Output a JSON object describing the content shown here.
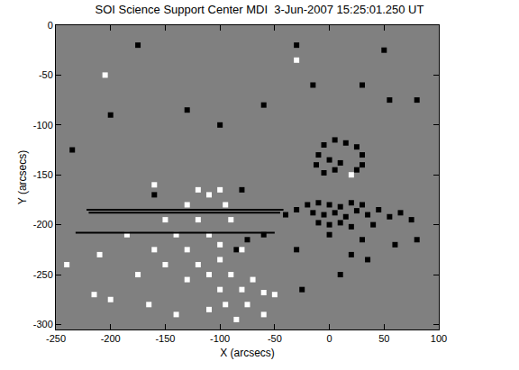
{
  "chart_data": {
    "type": "scatter",
    "title": "SOI Science Support Center MDI  3-Jun-2007 15:25:01.250 UT",
    "x_label": "X (arcsecs)",
    "y_label": "Y (arcsecs)",
    "xlim": [
      -250,
      100
    ],
    "ylim": [
      -305,
      0
    ],
    "xticks": [
      -250,
      -200,
      -150,
      -100,
      -50,
      0,
      50,
      100
    ],
    "yticks": [
      -300,
      -250,
      -200,
      -150,
      -100,
      -50,
      0
    ],
    "grid": false,
    "series": [
      {
        "type": "scatter",
        "color": "#000000",
        "marker": "square",
        "x": [
          -5,
          5,
          15,
          25,
          30,
          -10,
          -12,
          0,
          10,
          5,
          25,
          30,
          -5,
          -20,
          -10,
          0,
          10,
          20,
          30,
          -15,
          -5,
          5,
          15,
          25,
          35,
          45,
          -10,
          0,
          10,
          20,
          -30,
          -40,
          55,
          65,
          75,
          40,
          0,
          30,
          -75,
          -60,
          -85,
          -30,
          -25,
          35,
          60,
          80,
          55,
          -15,
          30,
          -100,
          -60,
          -130,
          -175,
          -30,
          50,
          -200,
          -235,
          -80,
          80,
          20,
          10,
          -160
        ],
        "y": [
          -120,
          -115,
          -118,
          -122,
          -130,
          -130,
          -140,
          -135,
          -138,
          -145,
          -145,
          -140,
          -148,
          -180,
          -178,
          -180,
          -182,
          -178,
          -180,
          -188,
          -190,
          -188,
          -192,
          -186,
          -190,
          -185,
          -198,
          -200,
          -198,
          -202,
          -185,
          -190,
          -192,
          -188,
          -195,
          -200,
          -210,
          -215,
          -215,
          -210,
          -225,
          -225,
          -265,
          -235,
          -220,
          -75,
          -75,
          -60,
          -60,
          -100,
          -80,
          -85,
          -20,
          -20,
          -25,
          -90,
          -125,
          -165,
          -215,
          -230,
          -250,
          -170
        ]
      },
      {
        "type": "scatter",
        "color": "#ffffff",
        "marker": "square",
        "x": [
          -120,
          -110,
          -100,
          -130,
          -95,
          -150,
          -120,
          -90,
          -140,
          -110,
          -130,
          -100,
          -80,
          -150,
          -120,
          -100,
          -110,
          -90,
          -70,
          -130,
          -100,
          -80,
          -60,
          -75,
          -95,
          -110,
          -85,
          -60,
          -50,
          -160,
          -175,
          -200,
          -165,
          -185,
          -160,
          -205,
          -30,
          20,
          -240,
          -215,
          -140,
          -210
        ],
        "y": [
          -165,
          -170,
          -165,
          -180,
          -180,
          -195,
          -195,
          -195,
          -210,
          -210,
          -225,
          -220,
          -225,
          -240,
          -240,
          -235,
          -250,
          -250,
          -255,
          -255,
          -265,
          -265,
          -268,
          -280,
          -280,
          -285,
          -295,
          -290,
          -270,
          -225,
          -250,
          -275,
          -280,
          -210,
          -160,
          -50,
          -35,
          -150,
          -240,
          -270,
          -290,
          -230
        ]
      },
      {
        "type": "line",
        "color": "#000000",
        "x": [
          -222,
          -42
        ],
        "y": [
          -185,
          -185
        ]
      },
      {
        "type": "line",
        "color": "#000000",
        "x": [
          -220,
          -45
        ],
        "y": [
          -188,
          -188
        ]
      },
      {
        "type": "line",
        "color": "#000000",
        "x": [
          -232,
          -50
        ],
        "y": [
          -208,
          -208
        ]
      }
    ]
  }
}
